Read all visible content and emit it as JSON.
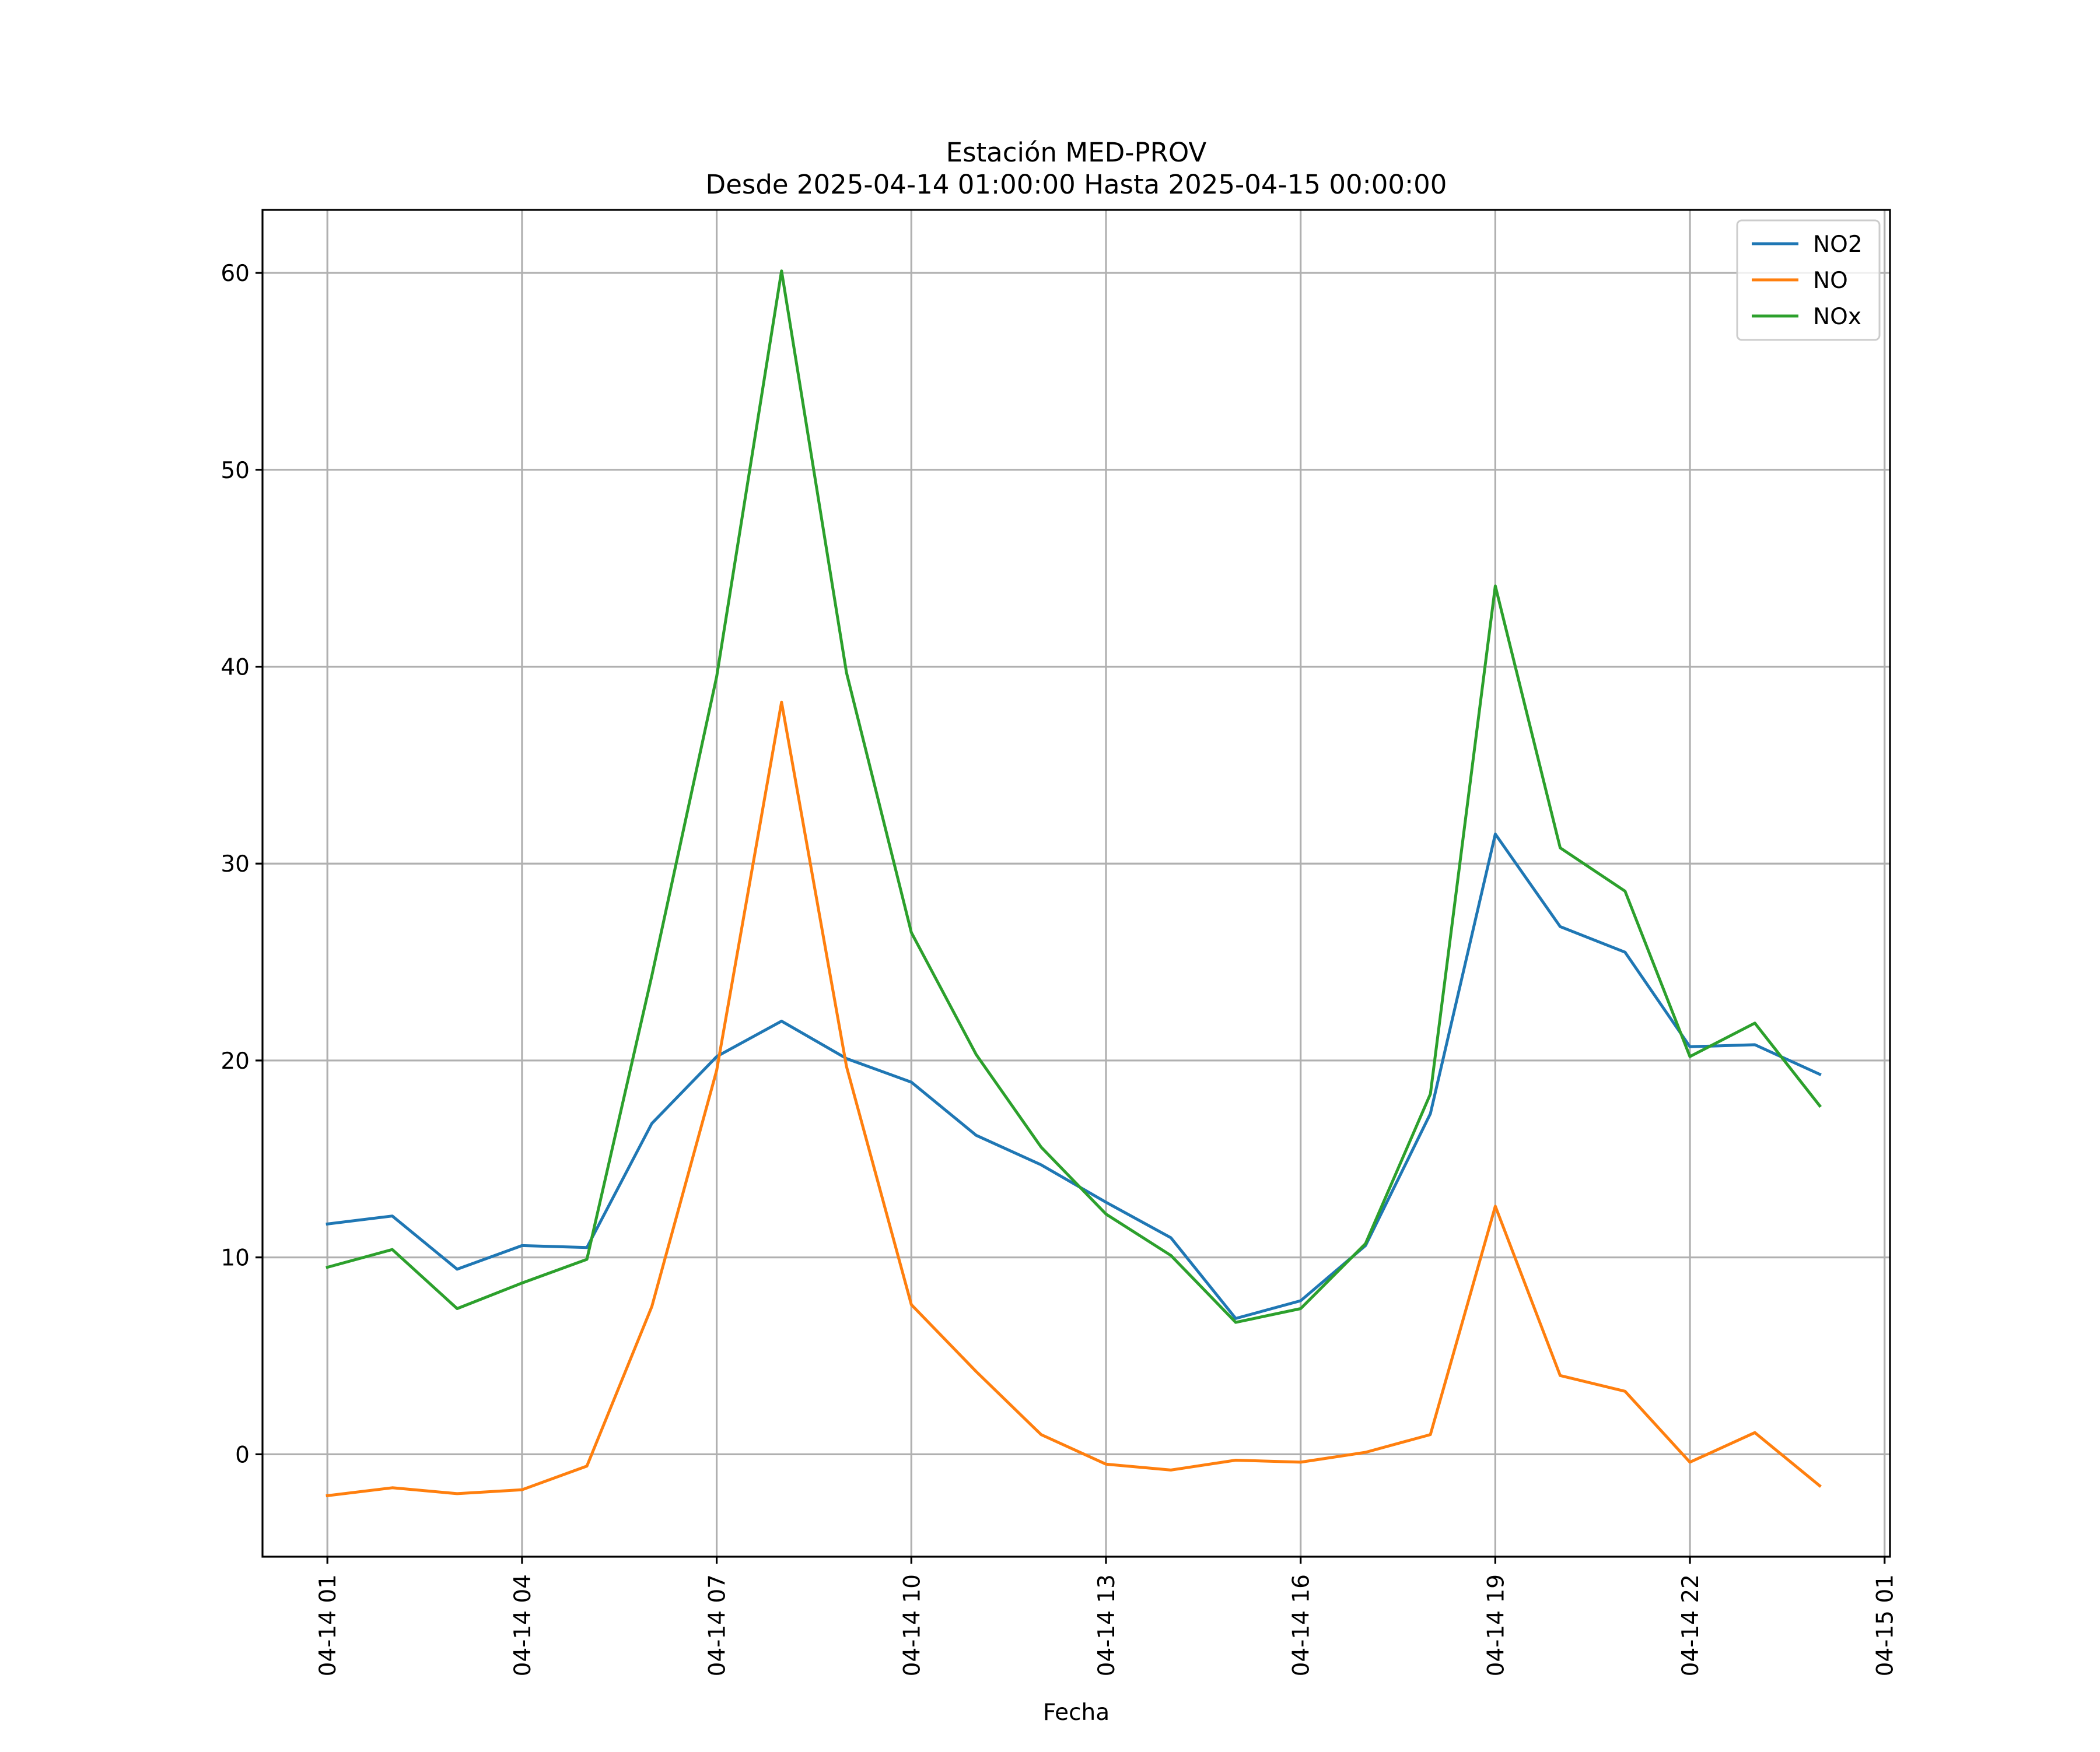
{
  "chart_data": {
    "type": "line",
    "title": "Estación MED-PROV",
    "subtitle": "Desde 2025-04-14 01:00:00 Hasta 2025-04-15 00:00:00",
    "xlabel": "Fecha",
    "ylabel": "",
    "x": [
      "2025-04-14 01:00",
      "2025-04-14 02:00",
      "2025-04-14 03:00",
      "2025-04-14 04:00",
      "2025-04-14 05:00",
      "2025-04-14 06:00",
      "2025-04-14 07:00",
      "2025-04-14 08:00",
      "2025-04-14 09:00",
      "2025-04-14 10:00",
      "2025-04-14 11:00",
      "2025-04-14 12:00",
      "2025-04-14 13:00",
      "2025-04-14 14:00",
      "2025-04-14 15:00",
      "2025-04-14 16:00",
      "2025-04-14 17:00",
      "2025-04-14 18:00",
      "2025-04-14 19:00",
      "2025-04-14 20:00",
      "2025-04-14 21:00",
      "2025-04-14 22:00",
      "2025-04-14 23:00",
      "2025-04-15 00:00"
    ],
    "series": [
      {
        "name": "NO2",
        "color": "#1f77b4",
        "values": [
          11.7,
          12.1,
          9.4,
          10.6,
          10.5,
          16.8,
          20.2,
          22.0,
          20.1,
          18.9,
          16.2,
          14.7,
          12.8,
          11.0,
          6.9,
          7.8,
          10.6,
          17.3,
          31.5,
          26.8,
          25.5,
          20.7,
          20.8,
          19.3
        ]
      },
      {
        "name": "NO",
        "color": "#ff7f0e",
        "values": [
          -2.1,
          -1.7,
          -2.0,
          -1.8,
          -0.6,
          7.5,
          19.5,
          38.2,
          19.7,
          7.6,
          4.2,
          1.0,
          -0.5,
          -0.8,
          -0.3,
          -0.4,
          0.1,
          1.0,
          12.6,
          4.0,
          3.2,
          -0.4,
          1.1,
          -1.6
        ]
      },
      {
        "name": "NOx",
        "color": "#2ca02c",
        "values": [
          9.5,
          10.4,
          7.4,
          8.7,
          9.9,
          24.3,
          39.5,
          60.1,
          39.7,
          26.5,
          20.3,
          15.6,
          12.2,
          10.1,
          6.7,
          7.4,
          10.7,
          18.3,
          44.1,
          30.8,
          28.6,
          20.2,
          21.9,
          17.7
        ]
      }
    ],
    "xticks": [
      "04-14 01",
      "04-14 04",
      "04-14 07",
      "04-14 10",
      "04-14 13",
      "04-14 16",
      "04-14 19",
      "04-14 22",
      "04-15 01"
    ],
    "yticks": [
      0,
      10,
      20,
      30,
      40,
      50,
      60
    ],
    "ylim": [
      -5.2,
      63.2
    ],
    "xlim": [
      "2025-04-14 00:00",
      "2025-04-15 01:05"
    ],
    "grid": true,
    "legend_position": "top-right"
  }
}
